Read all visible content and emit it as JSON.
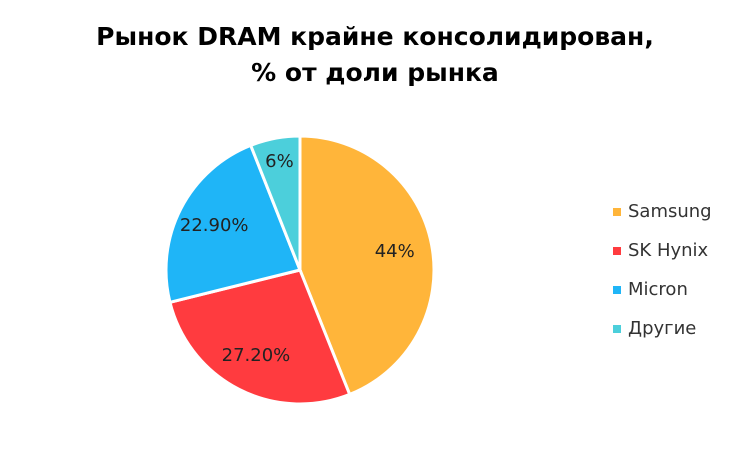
{
  "chart_data": {
    "type": "pie",
    "title": [
      "Рынок DRAM крайне консолидирован,",
      "% от доли рынка"
    ],
    "categories": [
      "Samsung",
      "SK Hynix",
      "Micron",
      "Другие"
    ],
    "values": [
      44,
      27.2,
      22.9,
      6
    ],
    "value_labels": [
      "44%",
      "27.20%",
      "22.90%",
      "6%"
    ],
    "colors": [
      "#ffb53a",
      "#ff3b3f",
      "#1fb5f7",
      "#4ccfdb"
    ],
    "legend": "right"
  }
}
